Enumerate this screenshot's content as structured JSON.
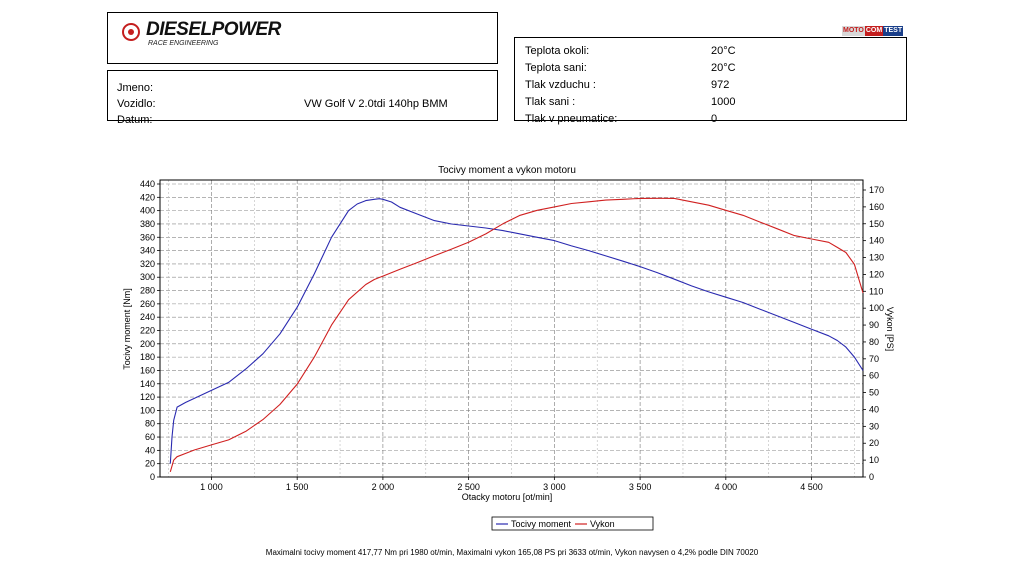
{
  "header": {
    "brand": "DIESELPOWER",
    "brand_sub": "RACE ENGINEERING",
    "badge": {
      "part1": "MOTO",
      "part2": "COM",
      "part3": "TEST"
    }
  },
  "vehicle": [
    {
      "label": "Jmeno:",
      "value": ""
    },
    {
      "label": "Vozidlo:",
      "value": "VW Golf V 2.0tdi 140hp BMM"
    },
    {
      "label": "Datum:",
      "value": ""
    }
  ],
  "conditions": [
    {
      "label": "Teplota okoli:",
      "value": "20°C"
    },
    {
      "label": "Teplota sani:",
      "value": "20°C"
    },
    {
      "label": "Tlak vzduchu :",
      "value": "972"
    },
    {
      "label": "Tlak sani :",
      "value": "1000"
    },
    {
      "label": "Tlak v pneumatice:",
      "value": "0"
    }
  ],
  "chart_data": {
    "type": "line",
    "title": "Tocivy moment a vykon motoru",
    "xlabel": "Otacky motoru [ot/min]",
    "ylabel": "Tocivy moment [Nm]",
    "y2label": "Vykon [PS]",
    "xlim": [
      700,
      4800
    ],
    "ylim": [
      0,
      440
    ],
    "y2lim": [
      0,
      175
    ],
    "xticks": [
      1000,
      1500,
      2000,
      2500,
      3000,
      3500,
      4000,
      4500
    ],
    "xtick_labels": [
      "1 000",
      "1 500",
      "2 000",
      "2 500",
      "3 000",
      "3 500",
      "4 000",
      "4 500"
    ],
    "yticks": [
      0,
      20,
      40,
      60,
      80,
      100,
      120,
      140,
      160,
      180,
      200,
      220,
      240,
      260,
      280,
      300,
      320,
      340,
      360,
      380,
      400,
      420,
      440
    ],
    "y2ticks": [
      0,
      10,
      20,
      30,
      40,
      50,
      60,
      70,
      80,
      90,
      100,
      110,
      120,
      130,
      140,
      150,
      160,
      170
    ],
    "grid": true,
    "legend_position": "bottom-center",
    "series": [
      {
        "name": "Tocivy moment",
        "axis": "left",
        "color": "#2a2ab0",
        "x": [
          760,
          770,
          780,
          800,
          850,
          900,
          1000,
          1100,
          1200,
          1300,
          1400,
          1500,
          1600,
          1700,
          1800,
          1850,
          1900,
          1950,
          1980,
          2000,
          2050,
          2100,
          2200,
          2300,
          2400,
          2500,
          2600,
          2700,
          2800,
          2900,
          3000,
          3100,
          3200,
          3300,
          3400,
          3500,
          3600,
          3700,
          3800,
          3900,
          4000,
          4100,
          4200,
          4300,
          4400,
          4500,
          4600,
          4650,
          4700,
          4750,
          4800
        ],
        "y": [
          20,
          60,
          85,
          105,
          112,
          118,
          130,
          142,
          162,
          185,
          215,
          255,
          305,
          360,
          400,
          410,
          415,
          417,
          418,
          417,
          413,
          405,
          395,
          385,
          380,
          377,
          374,
          370,
          365,
          360,
          355,
          347,
          340,
          332,
          324,
          316,
          307,
          297,
          287,
          278,
          270,
          262,
          252,
          242,
          232,
          222,
          212,
          205,
          195,
          180,
          160
        ]
      },
      {
        "name": "Vykon",
        "axis": "right",
        "color": "#d02020",
        "x": [
          760,
          780,
          800,
          850,
          900,
          1000,
          1100,
          1200,
          1300,
          1400,
          1500,
          1600,
          1700,
          1800,
          1900,
          1950,
          2000,
          2100,
          2200,
          2300,
          2400,
          2500,
          2600,
          2700,
          2800,
          2900,
          3000,
          3100,
          3200,
          3300,
          3400,
          3500,
          3600,
          3633,
          3700,
          3800,
          3900,
          4000,
          4100,
          4200,
          4300,
          4400,
          4500,
          4600,
          4650,
          4700,
          4750,
          4800
        ],
        "y": [
          3,
          10,
          12,
          14,
          16,
          19,
          22,
          27,
          34,
          43,
          55,
          71,
          90,
          105,
          114,
          117,
          119,
          123,
          127,
          131,
          135,
          139,
          144,
          150,
          155,
          158,
          160,
          162,
          163,
          164,
          164.5,
          165,
          165.1,
          165.08,
          165,
          163,
          161,
          158,
          155,
          151,
          147,
          143,
          141,
          139,
          136,
          133,
          126,
          109
        ]
      }
    ]
  },
  "footer": {
    "summary": "Maximalni tocivy moment 417,77 Nm pri 1980 ot/min,  Maximalni vykon 165,08 PS pri 3633 ot/min,  Vykon navysen o 4,2% podle DIN 70020"
  }
}
